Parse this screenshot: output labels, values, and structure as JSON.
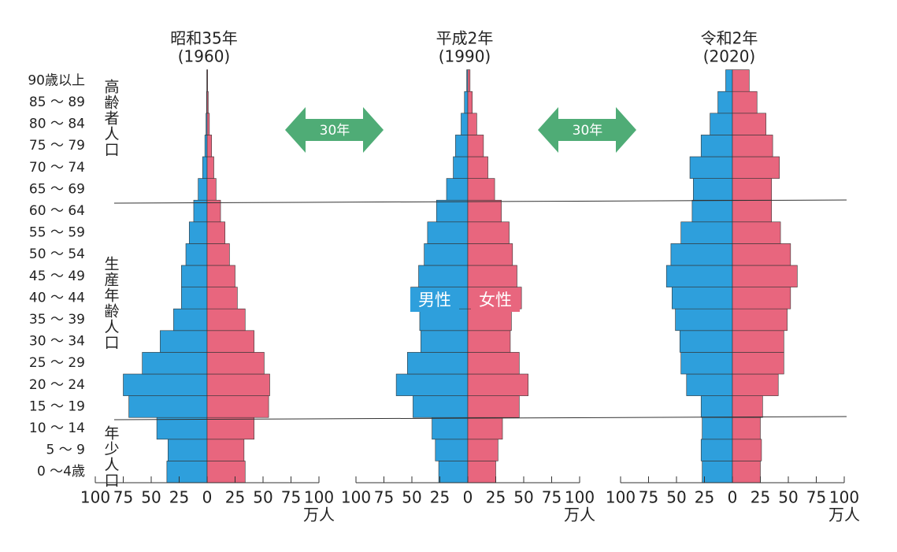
{
  "chart_data": [
    {
      "type": "pyramid",
      "title": "昭和35年",
      "subtitle": "(1960)",
      "xlabel": "万人",
      "categories": [
        "0 ～4歳",
        "5 ～  9",
        "10 ～ 14",
        "15 ～ 19",
        "20 ～ 24",
        "25 ～ 29",
        "30 ～ 34",
        "35 ～ 39",
        "40 ～ 44",
        "45 ～ 49",
        "50 ～ 54",
        "55 ～ 59",
        "60 ～ 64",
        "65 ～ 69",
        "70 ～ 74",
        "75 ～ 79",
        "80 ～ 84",
        "85 ～ 89",
        "90歳以上"
      ],
      "group_labels": [
        "年少人口",
        "生産年齢人口",
        "高齢者人口"
      ],
      "series": [
        {
          "color": "#2e9fdc",
          "values": [
            36,
            35,
            45,
            70,
            75,
            58,
            42,
            30,
            23,
            23,
            19,
            16,
            12,
            8,
            4,
            2,
            1,
            0.5,
            0.3
          ]
        },
        {
          "color": "#e8667e",
          "values": [
            34,
            33,
            42,
            55,
            56,
            51,
            42,
            34,
            27,
            25,
            20,
            16,
            12,
            8,
            6,
            4,
            2,
            1,
            0.5
          ]
        }
      ],
      "xlim": [
        -100,
        100
      ],
      "xticks": [
        {
          "value": -100,
          "label": "100"
        },
        {
          "value": -75,
          "label": "75"
        },
        {
          "value": -50,
          "label": "50"
        },
        {
          "value": -25,
          "label": "25"
        },
        0,
        25,
        50,
        75,
        100
      ]
    },
    {
      "type": "pyramid",
      "title": "平成2年",
      "subtitle": "(1990)",
      "xlabel": "万人",
      "interval_label": "30年",
      "series": [
        {
          "name": "男性",
          "color": "#2e9fdc",
          "values": [
            26,
            29,
            32,
            49,
            64,
            54,
            42,
            43,
            51,
            44,
            39,
            36,
            28,
            19,
            13,
            11,
            6,
            3,
            1
          ]
        },
        {
          "name": "女性",
          "color": "#e8667e",
          "values": [
            25,
            27,
            31,
            46,
            54,
            46,
            38,
            39,
            48,
            44,
            40,
            37,
            30,
            24,
            18,
            14,
            8,
            4,
            2
          ]
        }
      ],
      "xlim": [
        -100,
        100
      ],
      "xticks": [
        {
          "value": -100,
          "label": "100"
        },
        {
          "value": -75,
          "label": "75"
        },
        {
          "value": -50,
          "label": "50"
        },
        {
          "value": -25,
          "label": "25"
        },
        0,
        25,
        50,
        75,
        100
      ]
    },
    {
      "type": "pyramid",
      "title": "令和2年",
      "subtitle": "(2020)",
      "xlabel": "万人",
      "interval_label": "30年",
      "series": [
        {
          "color": "#2e9fdc",
          "values": [
            27,
            28,
            27,
            28,
            41,
            46,
            47,
            51,
            54,
            59,
            55,
            46,
            36,
            35,
            38,
            28,
            20,
            13,
            6
          ]
        },
        {
          "color": "#e8667e",
          "values": [
            25,
            26,
            25,
            27,
            41,
            46,
            46,
            49,
            52,
            58,
            52,
            43,
            35,
            35,
            42,
            36,
            30,
            22,
            15
          ]
        }
      ],
      "xlim": [
        -100,
        100
      ],
      "xticks": [
        {
          "value": -100,
          "label": "100"
        },
        {
          "value": -75,
          "label": "75"
        },
        {
          "value": -50,
          "label": "50"
        },
        {
          "value": -25,
          "label": "25"
        },
        0,
        25,
        50,
        75,
        100
      ]
    }
  ]
}
